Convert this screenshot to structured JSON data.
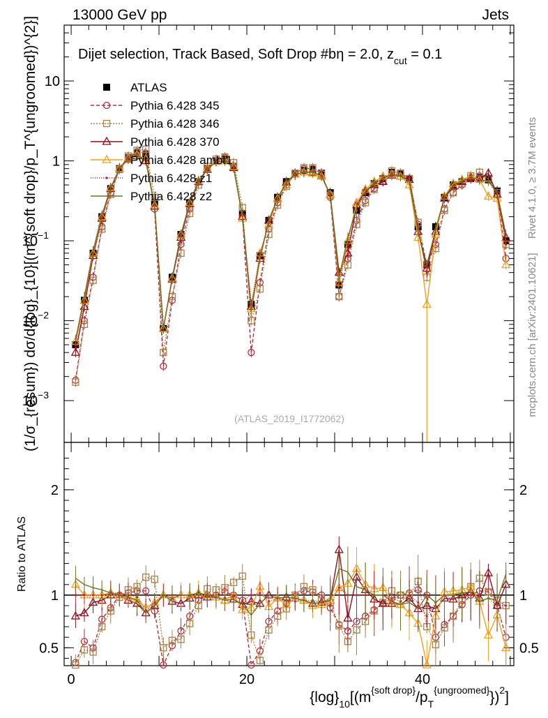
{
  "header": {
    "left": "13000 GeV pp",
    "right": "Jets"
  },
  "side_labels": {
    "rivet": "Rivet 4.1.0, ≥ 3.7M events",
    "mcplots": "mcplots.cern.ch [arXiv:2401.10621]"
  },
  "chart_data": [
    {
      "type": "line",
      "panel": "main",
      "title": "Dijet selection, Track Based, Soft Drop #b",
      "title_suffix": "η = 2.0, z",
      "title_sub": "cut",
      "title_end": " = 0.1",
      "watermark": "(ATLAS_2019_I1772062)",
      "ylabel": "(1/σ_{resum}) dσ/d{log}_{10}[(m^{soft drop}/p_T^{ungroomed})^{2}]",
      "xlim": [
        -0.8,
        50.4
      ],
      "ylim": [
        0.0003,
        50
      ],
      "yscale": "log",
      "y_ticks": [
        {
          "value": 0.001,
          "label": "10",
          "exp": "−3"
        },
        {
          "value": 0.01,
          "label": "10",
          "exp": "−2"
        },
        {
          "value": 0.1,
          "label": "10",
          "exp": "−1"
        },
        {
          "value": 1,
          "label": "1",
          "exp": ""
        },
        {
          "value": 10,
          "label": "10",
          "exp": ""
        }
      ],
      "x": [
        0.5,
        1.5,
        2.5,
        3.5,
        4.5,
        5.5,
        6.5,
        7.5,
        8.5,
        9.5,
        10.5,
        11.5,
        12.5,
        13.5,
        14.5,
        15.5,
        16.5,
        17.5,
        18.5,
        19.5,
        20.5,
        21.5,
        22.5,
        23.5,
        24.5,
        25.5,
        26.5,
        27.5,
        28.5,
        29.5,
        30.5,
        31.5,
        32.5,
        33.5,
        34.5,
        35.5,
        36.5,
        37.5,
        38.5,
        39.5,
        40.5,
        41.5,
        42.5,
        43.5,
        44.5,
        45.5,
        46.5,
        47.5,
        48.5,
        49.5
      ],
      "series": [
        {
          "name": "ATLAS",
          "color": "#000000",
          "style": "marker",
          "values": [
            0.005,
            0.018,
            0.07,
            0.2,
            0.45,
            0.8,
            1.1,
            1.25,
            1.2,
            0.3,
            0.008,
            0.035,
            0.12,
            0.3,
            0.55,
            0.8,
            1.0,
            1.05,
            0.85,
            0.22,
            0.016,
            0.065,
            0.18,
            0.35,
            0.55,
            0.7,
            0.76,
            0.78,
            0.7,
            0.4,
            0.028,
            0.09,
            0.24,
            0.4,
            0.52,
            0.6,
            0.72,
            0.7,
            0.6,
            0.15,
            0.05,
            0.15,
            0.35,
            0.5,
            0.55,
            0.6,
            0.62,
            0.58,
            0.42,
            0.1
          ]
        },
        {
          "name": "Pythia 6.428 345",
          "color": "#b03040",
          "style": "circle",
          "values": [
            0.0018,
            0.01,
            0.035,
            0.15,
            0.4,
            0.8,
            1.1,
            1.3,
            1.25,
            0.25,
            0.0027,
            0.018,
            0.09,
            0.25,
            0.55,
            0.8,
            1.0,
            1.1,
            0.85,
            0.2,
            0.004,
            0.03,
            0.14,
            0.3,
            0.5,
            0.7,
            0.8,
            0.8,
            0.7,
            0.35,
            0.02,
            0.06,
            0.18,
            0.32,
            0.45,
            0.55,
            0.7,
            0.7,
            0.6,
            0.16,
            0.05,
            0.09,
            0.25,
            0.4,
            0.5,
            0.6,
            0.65,
            0.6,
            0.38,
            0.06
          ]
        },
        {
          "name": "Pythia 6.428 346",
          "color": "#a8804a",
          "style": "square",
          "values": [
            0.0017,
            0.009,
            0.032,
            0.14,
            0.38,
            0.78,
            1.15,
            1.35,
            1.4,
            0.35,
            0.004,
            0.02,
            0.07,
            0.22,
            0.5,
            0.85,
            1.05,
            1.12,
            0.95,
            0.26,
            0.01,
            0.025,
            0.12,
            0.28,
            0.48,
            0.7,
            0.82,
            0.82,
            0.68,
            0.37,
            0.02,
            0.05,
            0.16,
            0.3,
            0.44,
            0.56,
            0.75,
            0.7,
            0.6,
            0.17,
            0.035,
            0.08,
            0.24,
            0.4,
            0.52,
            0.65,
            0.72,
            0.6,
            0.4,
            0.09
          ]
        },
        {
          "name": "Pythia 6.428 370",
          "color": "#8c1020",
          "style": "triangle",
          "values": [
            0.004,
            0.015,
            0.065,
            0.19,
            0.45,
            0.8,
            1.05,
            1.15,
            1.0,
            0.27,
            0.008,
            0.033,
            0.11,
            0.29,
            0.55,
            0.78,
            0.98,
            1.0,
            0.82,
            0.2,
            0.015,
            0.06,
            0.18,
            0.34,
            0.54,
            0.68,
            0.72,
            0.72,
            0.65,
            0.38,
            0.04,
            0.07,
            0.28,
            0.42,
            0.5,
            0.55,
            0.66,
            0.64,
            0.58,
            0.13,
            0.045,
            0.13,
            0.34,
            0.48,
            0.55,
            0.62,
            0.6,
            0.7,
            0.38,
            0.11
          ]
        },
        {
          "name": "Pythia 6.428 ambt1",
          "color": "#f0a020",
          "style": "triangle",
          "values": [
            0.0055,
            0.018,
            0.07,
            0.2,
            0.46,
            0.8,
            1.08,
            1.2,
            1.05,
            0.28,
            0.008,
            0.034,
            0.12,
            0.3,
            0.56,
            0.8,
            0.98,
            1.0,
            0.85,
            0.19,
            0.014,
            0.07,
            0.16,
            0.34,
            0.5,
            0.68,
            0.72,
            0.7,
            0.64,
            0.38,
            0.03,
            0.1,
            0.3,
            0.44,
            0.55,
            0.64,
            0.68,
            0.64,
            0.5,
            0.11,
            0.016,
            0.12,
            0.36,
            0.52,
            0.58,
            0.65,
            0.58,
            0.36,
            0.34,
            0.05
          ]
        },
        {
          "name": "Pythia 6.428 z1",
          "color": "#c02030",
          "style": "dot",
          "values": [
            0.005,
            0.018,
            0.07,
            0.2,
            0.46,
            0.82,
            1.1,
            1.22,
            1.02,
            0.28,
            0.008,
            0.035,
            0.12,
            0.3,
            0.56,
            0.8,
            0.98,
            1.02,
            0.84,
            0.21,
            0.016,
            0.066,
            0.17,
            0.34,
            0.52,
            0.66,
            0.72,
            0.74,
            0.65,
            0.36,
            0.03,
            0.09,
            0.24,
            0.4,
            0.52,
            0.6,
            0.7,
            0.66,
            0.6,
            0.14,
            0.04,
            0.14,
            0.35,
            0.48,
            0.54,
            0.6,
            0.58,
            0.56,
            0.38,
            0.09
          ]
        },
        {
          "name": "Pythia 6.428 z2",
          "color": "#707020",
          "style": "line",
          "values": [
            0.0058,
            0.02,
            0.075,
            0.21,
            0.46,
            0.8,
            1.08,
            1.18,
            1.0,
            0.27,
            0.008,
            0.034,
            0.12,
            0.3,
            0.56,
            0.8,
            0.98,
            1.0,
            0.82,
            0.2,
            0.013,
            0.06,
            0.18,
            0.34,
            0.54,
            0.68,
            0.72,
            0.72,
            0.65,
            0.38,
            0.035,
            0.11,
            0.26,
            0.42,
            0.52,
            0.6,
            0.68,
            0.64,
            0.56,
            0.13,
            0.05,
            0.14,
            0.35,
            0.5,
            0.56,
            0.62,
            0.58,
            0.56,
            0.4,
            0.12
          ]
        }
      ]
    },
    {
      "type": "line",
      "panel": "ratio",
      "ylabel": "Ratio to ATLAS",
      "xlabel_prefix": "{log}",
      "xlabel_sub": "10",
      "xlabel_mid": "[(m",
      "xlabel_sup1": "{soft drop}",
      "xlabel_mid2": "/p",
      "xlabel_sub2": "T",
      "xlabel_sup2": "{ungroomed}",
      "xlabel_end": "})",
      "xlabel_sup3": "2",
      "xlabel_close": "]",
      "xlim": [
        -0.8,
        50.4
      ],
      "ylim": [
        0.33,
        2.45
      ],
      "x_ticks": [
        {
          "value": 0,
          "label": "0"
        },
        {
          "value": 20,
          "label": "20"
        },
        {
          "value": 40,
          "label": "40"
        }
      ],
      "y_ticks": [
        {
          "value": 0.5,
          "label": "0.5"
        },
        {
          "value": 1,
          "label": "1"
        },
        {
          "value": 2,
          "label": "2"
        }
      ],
      "x": [
        0.5,
        1.5,
        2.5,
        3.5,
        4.5,
        5.5,
        6.5,
        7.5,
        8.5,
        9.5,
        10.5,
        11.5,
        12.5,
        13.5,
        14.5,
        15.5,
        16.5,
        17.5,
        18.5,
        19.5,
        20.5,
        21.5,
        22.5,
        23.5,
        24.5,
        25.5,
        26.5,
        27.5,
        28.5,
        29.5,
        30.5,
        31.5,
        32.5,
        33.5,
        34.5,
        35.5,
        36.5,
        37.5,
        38.5,
        39.5,
        40.5,
        41.5,
        42.5,
        43.5,
        44.5,
        45.5,
        46.5,
        47.5,
        48.5,
        49.5
      ],
      "series": [
        {
          "name": "Pythia 6.428 345",
          "color": "#b03040",
          "style": "circle",
          "values": [
            0.36,
            0.56,
            0.5,
            0.77,
            0.88,
            1.0,
            1.02,
            1.04,
            1.04,
            0.85,
            0.33,
            0.52,
            0.66,
            0.8,
            0.95,
            1.0,
            1.0,
            1.03,
            1.0,
            0.95,
            0.25,
            0.47,
            0.75,
            0.85,
            0.92,
            0.99,
            1.04,
            1.03,
            1.0,
            0.88,
            0.72,
            0.66,
            0.75,
            0.8,
            0.86,
            0.92,
            0.97,
            1.0,
            1.02,
            1.05,
            1.0,
            0.6,
            0.72,
            0.8,
            0.91,
            1.0,
            1.04,
            1.03,
            0.9,
            0.6
          ]
        },
        {
          "name": "Pythia 6.428 346",
          "color": "#a8804a",
          "style": "square",
          "values": [
            0.33,
            0.48,
            0.46,
            0.7,
            0.85,
            0.98,
            1.05,
            1.08,
            1.17,
            1.15,
            0.5,
            0.57,
            0.58,
            0.73,
            0.9,
            1.06,
            1.05,
            1.07,
            1.12,
            1.18,
            0.62,
            0.38,
            0.67,
            0.8,
            0.87,
            1.0,
            1.08,
            1.05,
            0.97,
            0.93,
            0.71,
            0.56,
            0.67,
            0.75,
            0.85,
            0.93,
            1.04,
            1.0,
            1.0,
            1.13,
            0.7,
            0.53,
            0.69,
            0.8,
            0.95,
            1.08,
            1.16,
            1.03,
            0.95,
            0.9
          ]
        },
        {
          "name": "Pythia 6.428 370",
          "color": "#8c1020",
          "style": "triangle",
          "values": [
            0.8,
            0.83,
            0.93,
            0.95,
            1.0,
            1.0,
            0.95,
            0.92,
            0.83,
            0.9,
            1.0,
            0.94,
            0.92,
            0.97,
            1.0,
            0.98,
            0.98,
            0.95,
            0.96,
            0.91,
            0.94,
            0.92,
            1.0,
            0.97,
            0.98,
            0.97,
            0.95,
            0.92,
            0.93,
            0.95,
            1.43,
            0.78,
            1.17,
            1.05,
            0.96,
            0.92,
            0.92,
            0.91,
            0.97,
            0.87,
            0.9,
            0.87,
            0.97,
            0.96,
            1.0,
            1.03,
            0.97,
            1.21,
            0.9,
            1.1
          ]
        },
        {
          "name": "Pythia 6.428 ambt1",
          "color": "#f0a020",
          "style": "triangle",
          "values": [
            1.1,
            1.0,
            1.0,
            1.0,
            1.02,
            1.0,
            0.98,
            0.96,
            0.88,
            0.93,
            1.0,
            0.97,
            1.0,
            1.0,
            1.02,
            1.0,
            0.98,
            0.95,
            1.0,
            0.86,
            0.88,
            1.08,
            0.89,
            0.97,
            0.91,
            0.97,
            0.95,
            0.9,
            0.91,
            0.95,
            1.07,
            1.11,
            1.25,
            1.1,
            1.06,
            1.07,
            0.94,
            0.91,
            0.83,
            0.73,
            0.32,
            0.8,
            1.03,
            1.04,
            1.05,
            1.08,
            0.94,
            0.62,
            0.81,
            0.5
          ]
        },
        {
          "name": "Pythia 6.428 z1",
          "color": "#c02030",
          "style": "dot",
          "values": [
            1.0,
            1.0,
            1.0,
            1.0,
            1.02,
            1.02,
            1.0,
            0.98,
            0.85,
            0.93,
            1.0,
            1.0,
            1.0,
            1.0,
            1.02,
            1.0,
            0.98,
            0.97,
            0.99,
            0.95,
            1.0,
            1.02,
            0.94,
            0.97,
            0.95,
            0.94,
            0.95,
            0.95,
            0.93,
            0.9,
            1.07,
            1.0,
            1.0,
            1.0,
            1.0,
            1.0,
            0.97,
            0.94,
            1.0,
            0.93,
            0.8,
            0.93,
            1.0,
            0.96,
            0.98,
            1.0,
            0.94,
            0.97,
            0.9,
            0.9
          ]
        },
        {
          "name": "Pythia 6.428 z2",
          "color": "#707020",
          "style": "line",
          "values": [
            1.16,
            1.1,
            1.07,
            1.05,
            1.02,
            1.0,
            0.98,
            0.95,
            0.83,
            0.9,
            1.0,
            0.97,
            1.0,
            1.0,
            1.02,
            1.0,
            0.98,
            0.95,
            0.96,
            0.91,
            0.81,
            0.92,
            1.0,
            0.97,
            0.98,
            0.97,
            0.95,
            0.92,
            0.93,
            0.95,
            1.25,
            1.22,
            1.08,
            1.05,
            1.0,
            1.0,
            0.94,
            0.91,
            0.93,
            0.87,
            1.0,
            0.93,
            1.0,
            1.0,
            1.02,
            1.03,
            0.94,
            0.97,
            0.95,
            1.2
          ]
        }
      ]
    }
  ]
}
